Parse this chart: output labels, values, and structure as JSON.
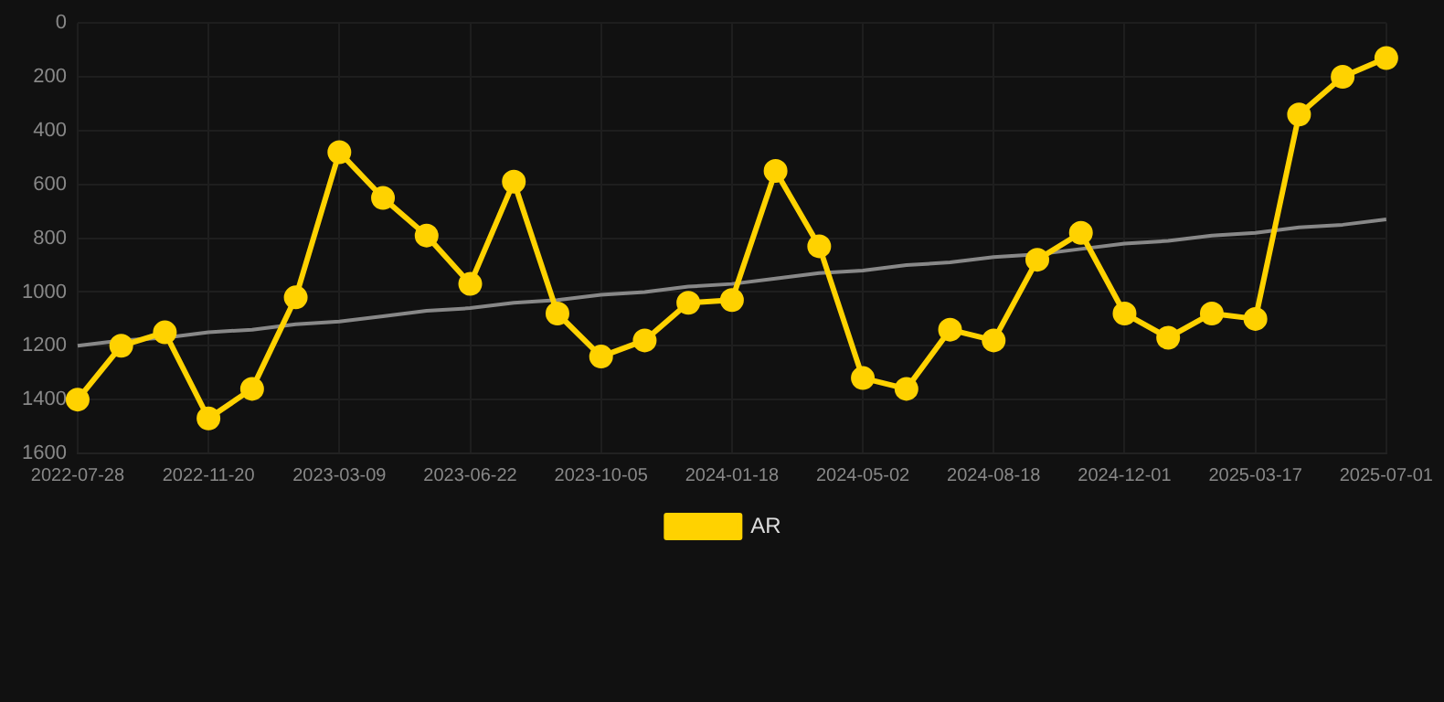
{
  "chart_data": {
    "type": "line",
    "categories": [
      "2022-07-28",
      null,
      null,
      "2022-11-20",
      null,
      null,
      "2023-03-09",
      null,
      null,
      "2023-06-22",
      null,
      null,
      "2023-10-05",
      null,
      null,
      "2024-01-18",
      null,
      null,
      "2024-05-02",
      null,
      null,
      "2024-08-18",
      null,
      null,
      "2024-12-01",
      null,
      null,
      "2025-03-17",
      null,
      null,
      "2025-07-01"
    ],
    "series": [
      {
        "name": "AR",
        "color": "#ffd200",
        "marker": "circle",
        "values": [
          1400,
          1200,
          1150,
          1470,
          1360,
          1020,
          480,
          650,
          790,
          970,
          590,
          1080,
          1240,
          1180,
          1040,
          1030,
          550,
          830,
          1320,
          1360,
          1140,
          1180,
          880,
          780,
          1080,
          1170,
          1080,
          1100,
          340,
          200,
          130
        ]
      },
      {
        "type": "line",
        "color": "#888888",
        "marker": "none",
        "values": [
          1200,
          1180,
          1170,
          1150,
          1140,
          1120,
          1110,
          1090,
          1070,
          1060,
          1040,
          1030,
          1010,
          1000,
          980,
          970,
          950,
          930,
          920,
          900,
          890,
          870,
          860,
          840,
          820,
          810,
          790,
          780,
          760,
          750,
          730
        ]
      }
    ],
    "ylim": [
      1600,
      0
    ],
    "yticks": [
      0,
      200,
      400,
      600,
      800,
      1000,
      1200,
      1400,
      1600
    ],
    "grid": true,
    "legend": "bottom"
  }
}
